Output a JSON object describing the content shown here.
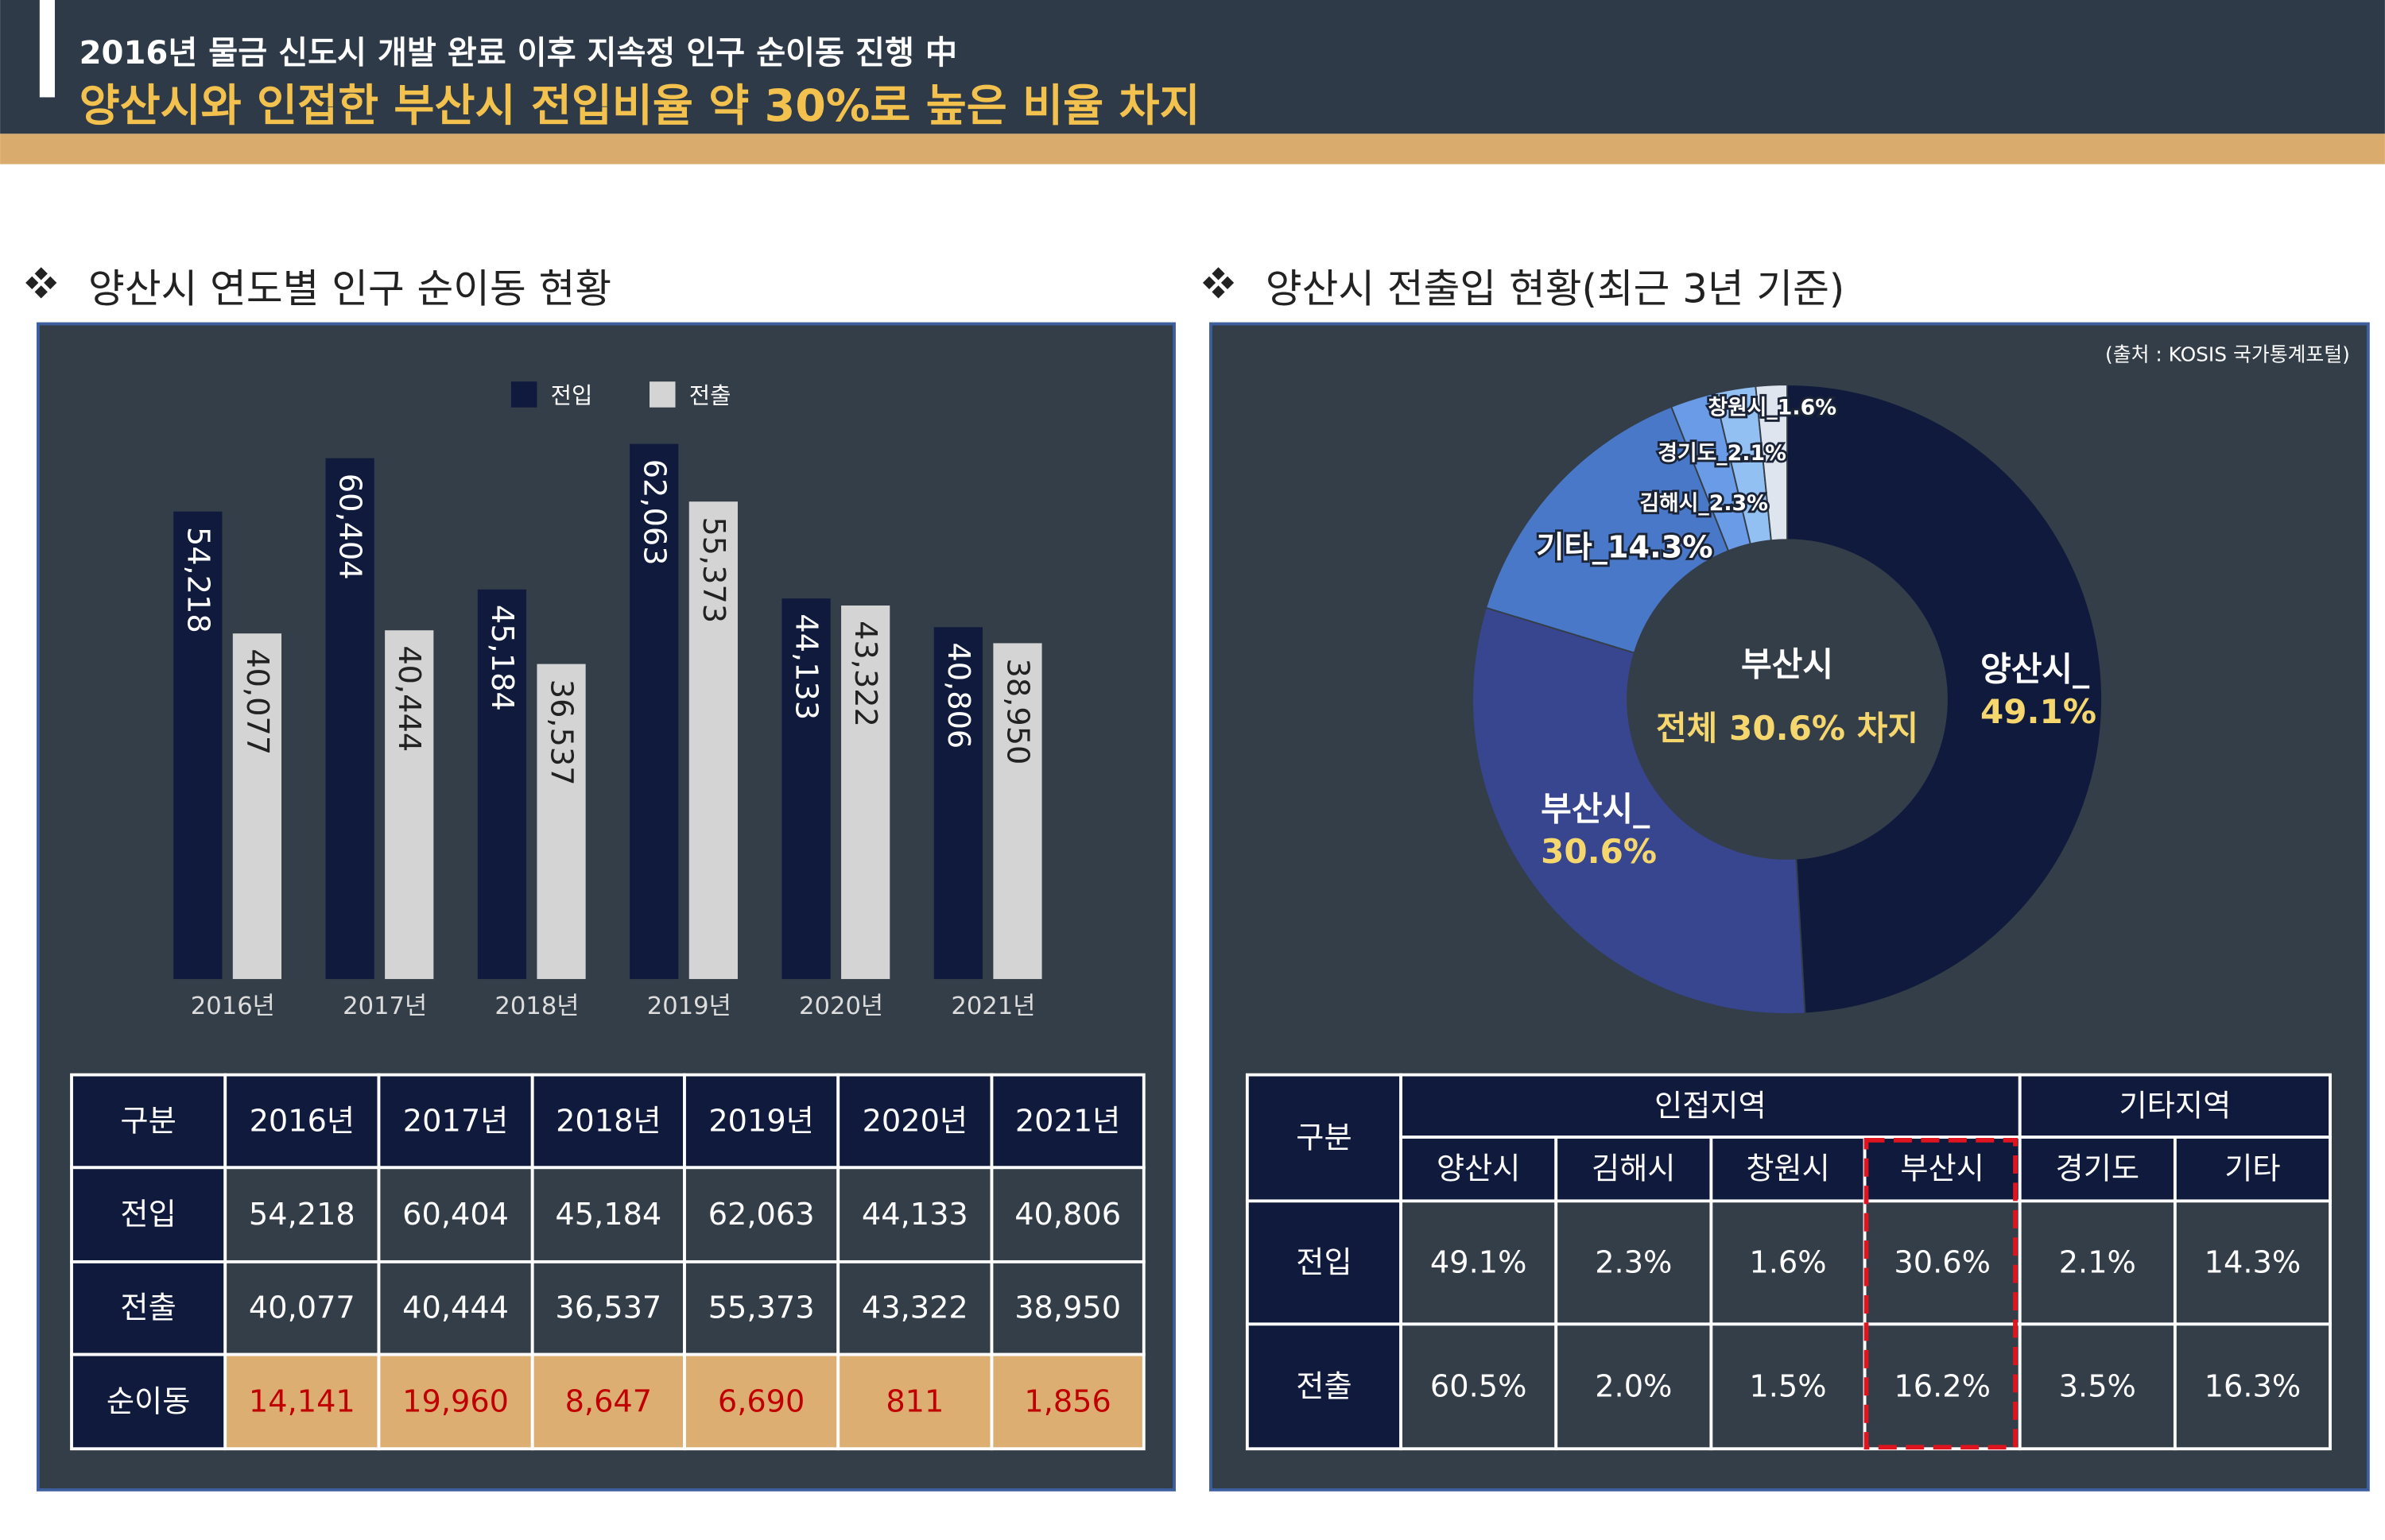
{
  "header": {
    "line1": "2016년 물금 신도시 개발 완료 이후 지속정 인구 순이동 진행 中",
    "line2": "양산시와 인접한 부산시 전입비율 약 30%로 높은 비율 차지"
  },
  "chart_data": [
    {
      "type": "bar",
      "title": "양산시 연도별 인구 순이동 현황",
      "categories": [
        "2016년",
        "2017년",
        "2018년",
        "2019년",
        "2020년",
        "2021년"
      ],
      "series": [
        {
          "name": "전입",
          "color": "#0f1a3c",
          "values": [
            54218,
            60404,
            45184,
            62063,
            44133,
            40806
          ],
          "value_labels": [
            "54,218",
            "60,404",
            "45,184",
            "62,063",
            "44,133",
            "40,806"
          ]
        },
        {
          "name": "전출",
          "color": "#d4d4d4",
          "values": [
            40077,
            40444,
            36537,
            55373,
            43322,
            38950
          ],
          "value_labels": [
            "40,077",
            "40,444",
            "36,537",
            "55,373",
            "43,322",
            "38,950"
          ]
        }
      ]
    },
    {
      "type": "pie",
      "title": "양산시 전출입 현황(최근 3년 기준)",
      "source": "(출처 : KOSIS 국가통계포털)",
      "categories": [
        "양산시_",
        "부산시_",
        "기타_",
        "김해시_",
        "경기도_",
        "창원시_"
      ],
      "values": [
        49.1,
        30.6,
        14.3,
        2.3,
        2.1,
        1.6
      ],
      "value_labels": [
        "49.1%",
        "30.6%",
        "14.3%",
        "2.3%",
        "2.1%",
        "1.6%"
      ],
      "colors": [
        "#0f1a3c",
        "#37468f",
        "#4a78c8",
        "#6a9be6",
        "#92c0f2",
        "#dfe5ef"
      ],
      "center_label": [
        "부산시",
        "전체 30.6% 차지"
      ]
    }
  ],
  "table1": {
    "header": [
      "구분",
      "2016년",
      "2017년",
      "2018년",
      "2019년",
      "2020년",
      "2021년"
    ],
    "rows": [
      [
        "전입",
        "54,218",
        "60,404",
        "45,184",
        "62,063",
        "44,133",
        "40,806"
      ],
      [
        "전출",
        "40,077",
        "40,444",
        "36,537",
        "55,373",
        "43,322",
        "38,950"
      ],
      [
        "순이동",
        "14,141",
        "19,960",
        "8,647",
        "6,690",
        "811",
        "1,856"
      ]
    ]
  },
  "table2": {
    "header_groups": [
      "구분",
      "인접지역",
      "기타지역"
    ],
    "header": [
      "양산시",
      "김해시",
      "창원시",
      "부산시",
      "경기도",
      "기타"
    ],
    "rows": [
      [
        "전입",
        "49.1%",
        "2.3%",
        "1.6%",
        "30.6%",
        "2.1%",
        "14.3%"
      ],
      [
        "전출",
        "60.5%",
        "2.0%",
        "1.5%",
        "16.2%",
        "3.5%",
        "16.3%"
      ]
    ]
  }
}
